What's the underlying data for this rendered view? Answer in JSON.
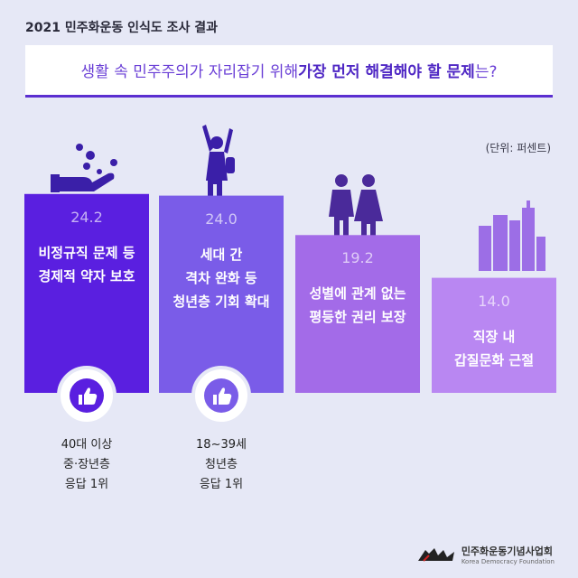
{
  "header": {
    "survey_title": "2021 민주화운동 인식도 조사 결과",
    "question_pre": "생활 속 민주주의가 자리잡기 위해 ",
    "question_highlight": "가장 먼저 해결해야 할 문제",
    "question_post": "는?"
  },
  "unit": "(단위: 퍼센트)",
  "colors": {
    "bar1": "#5a1fe0",
    "bar2": "#7a5ce8",
    "bar3": "#a36be8",
    "bar4": "#b987f2",
    "background": "#e6e8f6"
  },
  "chart_data": {
    "type": "bar",
    "categories": [
      "비정규직 문제 등\n경제적 약자 보호",
      "세대 간\n격차 완화 등\n청년층 기회 확대",
      "성별에 관계 없는\n평등한 권리 보장",
      "직장 내\n갑질문화 근절"
    ],
    "values": [
      24.2,
      24.0,
      19.2,
      14.0
    ],
    "value_labels": [
      "24.2",
      "24.0",
      "19.2",
      "14.0"
    ],
    "title": "",
    "xlabel": "",
    "ylabel": ""
  },
  "notes": [
    {
      "text": "40대 이상\n중·장년층\n응답 1위",
      "icon": "thumbs-up-icon"
    },
    {
      "text": "18~39세\n청년층\n응답 1위",
      "icon": "thumbs-up-icon"
    }
  ],
  "logo": {
    "korean": "민주화운동기념사업회",
    "english": "Korea Democracy Foundation"
  }
}
